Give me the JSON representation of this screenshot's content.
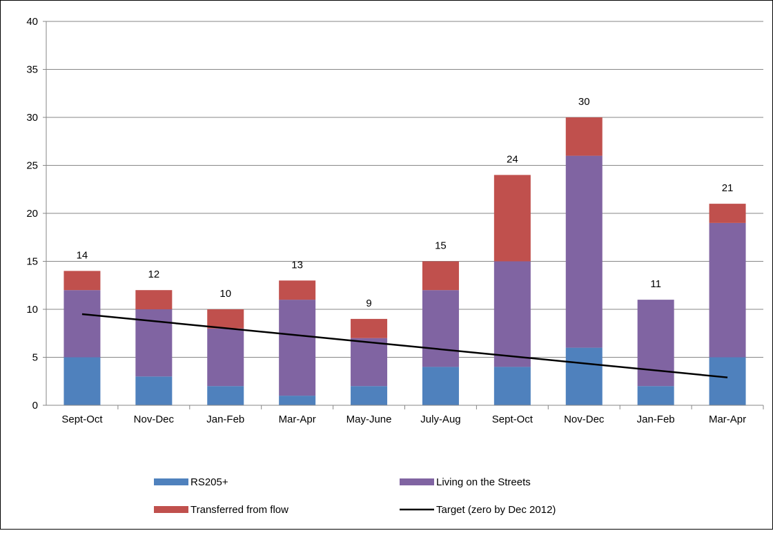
{
  "chart_data": {
    "type": "bar",
    "stacked": true,
    "title": "",
    "categories": [
      "Sept-Oct",
      "Nov-Dec",
      "Jan-Feb",
      "Mar-Apr",
      "May-June",
      "July-Aug",
      "Sept-Oct",
      "Nov-Dec",
      "Jan-Feb",
      "Mar-Apr"
    ],
    "series": [
      {
        "name": "RS205+",
        "color": "#4f81bd",
        "values": [
          5,
          3,
          2,
          1,
          2,
          4,
          4,
          6,
          2,
          5
        ]
      },
      {
        "name": "Living on the Streets",
        "color": "#8064a2",
        "values": [
          7,
          7,
          6,
          10,
          5,
          8,
          11,
          20,
          9,
          14
        ]
      },
      {
        "name": "Transferred from flow",
        "color": "#c0504d",
        "values": [
          2,
          2,
          2,
          2,
          2,
          3,
          9,
          4,
          0,
          2
        ]
      }
    ],
    "totals": [
      14,
      12,
      10,
      13,
      9,
      15,
      24,
      30,
      11,
      21
    ],
    "target_line": {
      "name": "Target (zero by Dec 2012)",
      "color": "#000000",
      "start": 9.5,
      "end": 2.9
    },
    "yticks": [
      0,
      5,
      10,
      15,
      20,
      25,
      30,
      35,
      40
    ],
    "ylim": [
      0,
      40
    ],
    "grid": true,
    "legend_placement": "bottom"
  }
}
